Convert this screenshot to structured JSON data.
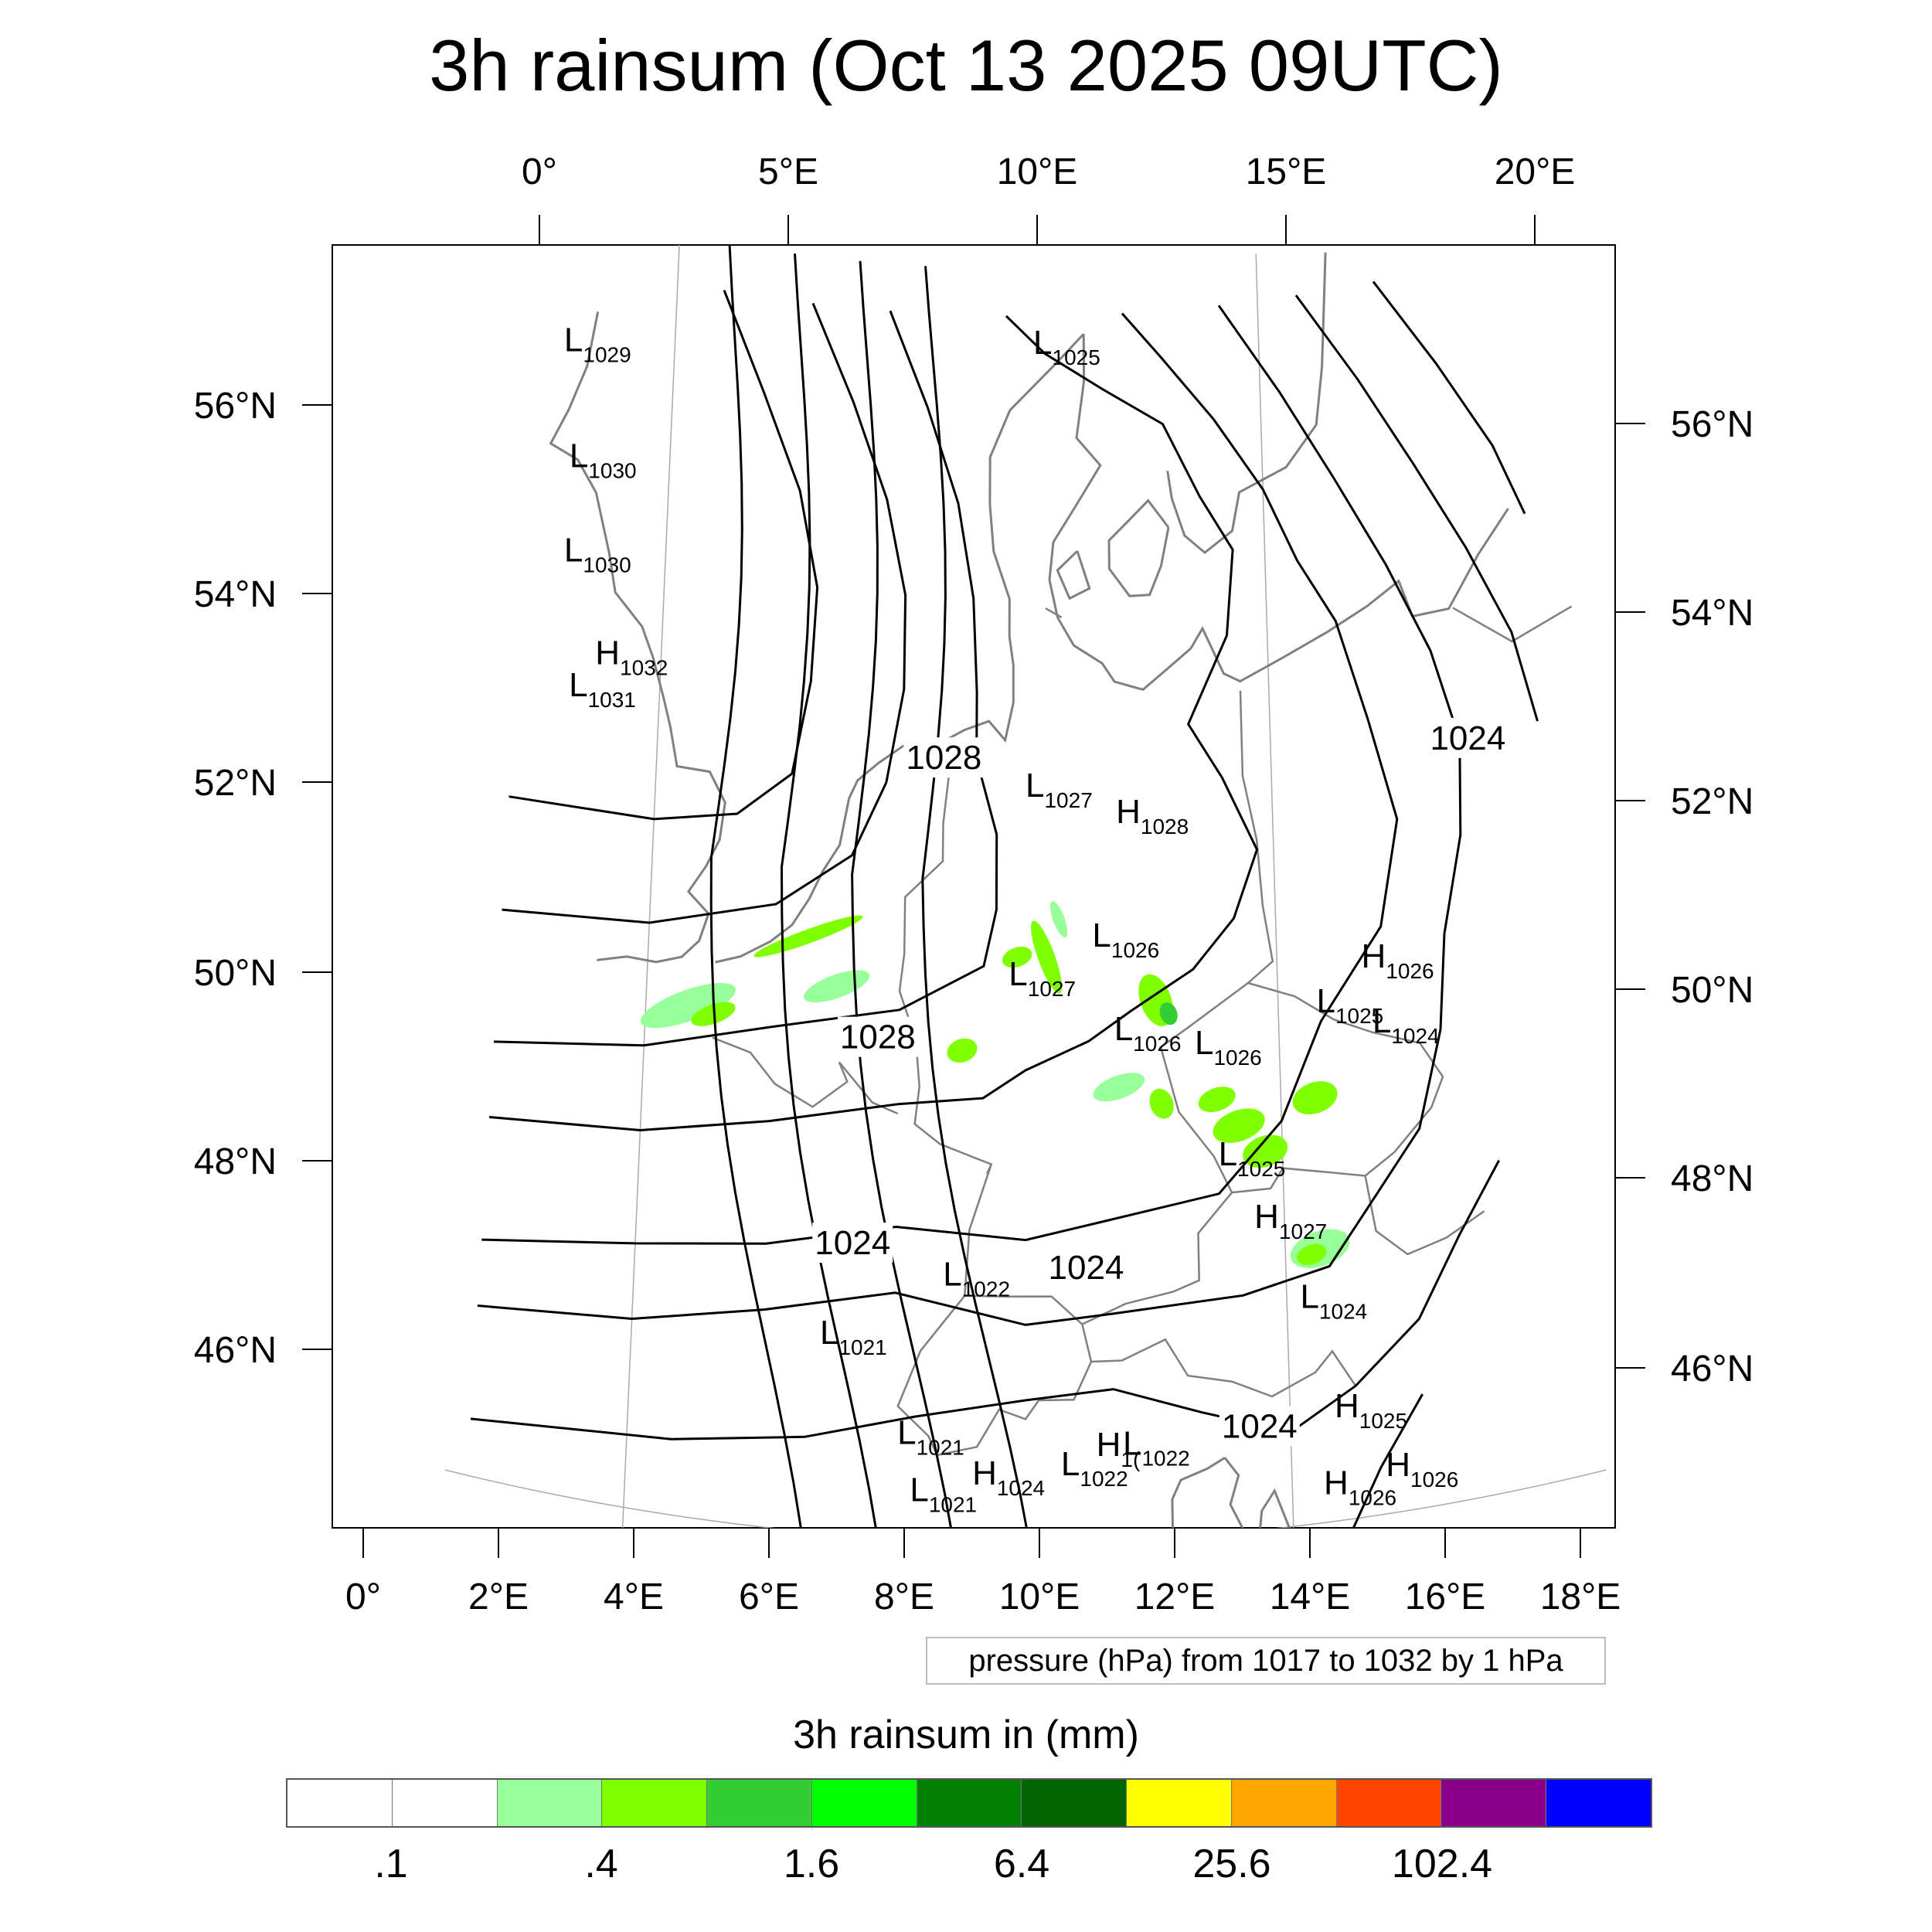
{
  "title": "3h rainsum (Oct 13 2025 09UTC)",
  "top_axis_labels": [
    "0°",
    "5°E",
    "10°E",
    "15°E",
    "20°E"
  ],
  "bottom_axis_labels": [
    "0°",
    "2°E",
    "4°E",
    "6°E",
    "8°E",
    "10°E",
    "12°E",
    "14°E",
    "16°E",
    "18°E"
  ],
  "left_axis_labels": [
    "56°N",
    "54°N",
    "52°N",
    "50°N",
    "48°N",
    "46°N"
  ],
  "right_axis_labels": [
    "56°N",
    "54°N",
    "52°N",
    "50°N",
    "48°N",
    "46°N"
  ],
  "contour_labels": [
    {
      "text": "1028",
      "lat": 53.3,
      "lon": 7.0
    },
    {
      "text": "1028",
      "lat": 50.3,
      "lon": 5.5
    },
    {
      "text": "1024",
      "lat": 48.1,
      "lon": 5.0
    },
    {
      "text": "1024",
      "lat": 47.9,
      "lon": 10.4
    },
    {
      "text": "1024",
      "lat": 46.1,
      "lon": 14.3
    },
    {
      "text": "1024",
      "lat": 53.0,
      "lon": 19.8
    }
  ],
  "pressure_centers": [
    {
      "type": "L",
      "value": "1029",
      "lat": 57.0,
      "lon": -2.8
    },
    {
      "type": "L",
      "value": "1030",
      "lat": 55.8,
      "lon": -2.5
    },
    {
      "type": "L",
      "value": "1030",
      "lat": 54.8,
      "lon": -2.5
    },
    {
      "type": "H",
      "value": "1032",
      "lat": 53.8,
      "lon": -1.6
    },
    {
      "type": "L",
      "value": "1031",
      "lat": 53.4,
      "lon": -2.2
    },
    {
      "type": "L",
      "value": "1025",
      "lat": 57.6,
      "lon": 9.2
    },
    {
      "type": "L",
      "value": "1027",
      "lat": 52.9,
      "lon": 9.0
    },
    {
      "type": "H",
      "value": "1028",
      "lat": 52.6,
      "lon": 11.2
    },
    {
      "type": "L",
      "value": "1026",
      "lat": 51.3,
      "lon": 10.6
    },
    {
      "type": "L",
      "value": "1027",
      "lat": 50.9,
      "lon": 8.6
    },
    {
      "type": "L",
      "value": "1026",
      "lat": 50.3,
      "lon": 11.1
    },
    {
      "type": "L",
      "value": "1026",
      "lat": 50.1,
      "lon": 13.0
    },
    {
      "type": "L",
      "value": "1025",
      "lat": 48.9,
      "lon": 13.5
    },
    {
      "type": "H",
      "value": "1027",
      "lat": 48.2,
      "lon": 14.3
    },
    {
      "type": "L",
      "value": "1024",
      "lat": 47.3,
      "lon": 15.3
    },
    {
      "type": "H",
      "value": "1026",
      "lat": 50.8,
      "lon": 17.0
    },
    {
      "type": "L",
      "value": "1025",
      "lat": 50.4,
      "lon": 15.9
    },
    {
      "type": "L",
      "value": "1024",
      "lat": 50.1,
      "lon": 17.2
    },
    {
      "type": "L",
      "value": "1022",
      "lat": 47.7,
      "lon": 7.1
    },
    {
      "type": "L",
      "value": "1021",
      "lat": 47.0,
      "lon": 4.3
    },
    {
      "type": "L",
      "value": "1021",
      "lat": 46.0,
      "lon": 6.1
    },
    {
      "type": "L",
      "value": "1021",
      "lat": 45.4,
      "lon": 6.4
    },
    {
      "type": "H",
      "value": "1024",
      "lat": 45.6,
      "lon": 7.8
    },
    {
      "type": "L",
      "value": "1022",
      "lat": 45.7,
      "lon": 9.8
    },
    {
      "type": "H",
      "value": "1(",
      "lat": 45.9,
      "lon": 10.6
    },
    {
      "type": "L",
      "value": "1022",
      "lat": 45.9,
      "lon": 11.2
    },
    {
      "type": "H",
      "value": "1025",
      "lat": 46.1,
      "lon": 16.0
    },
    {
      "type": "H",
      "value": "1026",
      "lat": 45.3,
      "lon": 15.7
    },
    {
      "type": "H",
      "value": "1026",
      "lat": 45.4,
      "lon": 17.1
    }
  ],
  "small_label": "1021",
  "pressure_note": "pressure (hPa) from 1017 to 1032 by 1 hPa",
  "colorbar": {
    "title": "3h rainsum in (mm)",
    "colors": [
      "#ffffff",
      "#ffffff",
      "#99ff99",
      "#80ff00",
      "#33cc33",
      "#00ff00",
      "#008000",
      "#006400",
      "#ffff00",
      "#ffa500",
      "#ff4500",
      "#8b008b",
      "#0000ff"
    ],
    "labels": [
      ".1",
      ".4",
      "1.6",
      "6.4",
      "25.6",
      "102.4"
    ]
  },
  "colors": {
    "contour": "#000000",
    "coastline": "#808080",
    "grid": "#aaaaaa",
    "rain_light": "#99ff99",
    "rain_mid": "#80ff00",
    "rain_heavy": "#33cc33"
  }
}
